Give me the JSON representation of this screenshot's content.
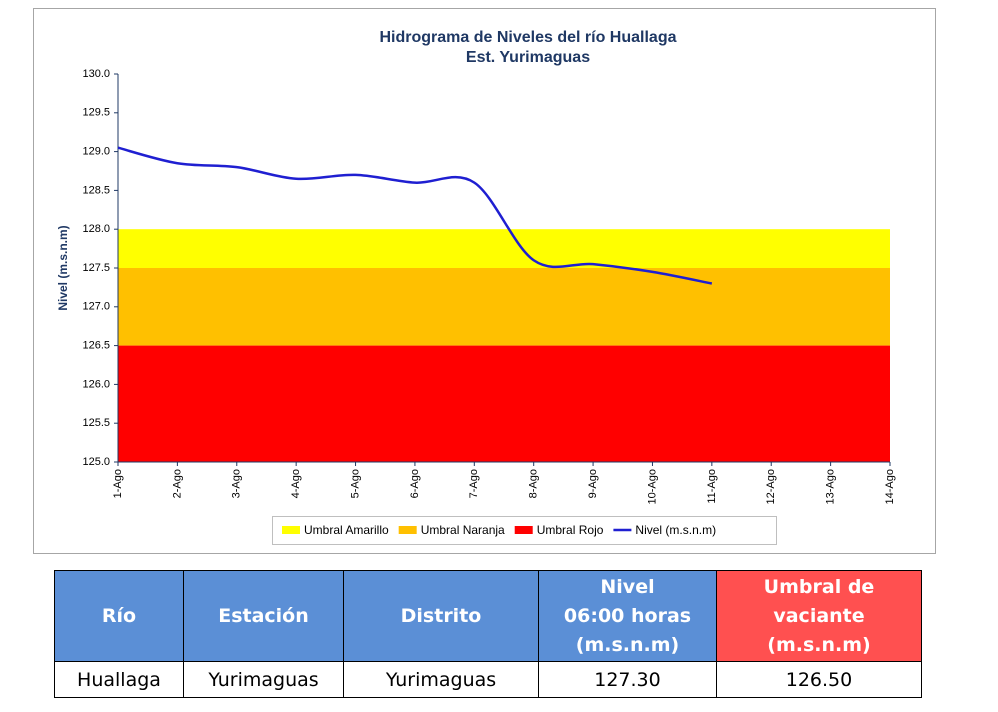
{
  "chart_data": {
    "type": "line",
    "title": "Hidrograma de Niveles del río Huallaga",
    "subtitle": "Est. Yurimaguas",
    "ylabel": "Nivel (m.s.n.m)",
    "categories": [
      "1-Ago",
      "2-Ago",
      "3-Ago",
      "4-Ago",
      "5-Ago",
      "6-Ago",
      "7-Ago",
      "8-Ago",
      "9-Ago",
      "10-Ago",
      "11-Ago",
      "12-Ago",
      "13-Ago",
      "14-Ago"
    ],
    "ylim": [
      125,
      130
    ],
    "yticks": [
      {
        "value": 125,
        "label": "125.0"
      },
      125.5,
      {
        "value": 126,
        "label": "126.0"
      },
      126.5,
      {
        "value": 127,
        "label": "127.0"
      },
      127.5,
      {
        "value": 128,
        "label": "128.0"
      },
      128.5,
      {
        "value": 129,
        "label": "129.0"
      },
      129.5,
      {
        "value": 130,
        "label": "130.0"
      }
    ],
    "bands": [
      {
        "name": "Umbral Amarillo",
        "color": "#ffff00",
        "range": [
          127.5,
          128
        ]
      },
      {
        "name": "Umbral Naranja",
        "color": "#ffc000",
        "range": [
          126.5,
          127.5
        ]
      },
      {
        "name": "Umbral Rojo",
        "color": "#ff0000",
        "range": [
          125,
          126.5
        ]
      }
    ],
    "series": [
      {
        "name": "Nivel (m.s.n.m)",
        "color": "#1f1fd1",
        "values": [
          129.05,
          128.85,
          128.8,
          128.65,
          128.7,
          128.6,
          128.6,
          127.6,
          127.55,
          127.45,
          127.3,
          null,
          null,
          null
        ]
      }
    ],
    "smooth": true
  },
  "table": {
    "header": [
      "Río",
      "Estación",
      "Distrito",
      "Nivel\n06:00 horas\n(m.s.n.m)",
      "Umbral de\nvaciante\n(m.s.n.m)"
    ],
    "rows": [
      [
        "Huallaga",
        "Yurimaguas",
        "Yurimaguas",
        "127.30",
        "126.50"
      ]
    ]
  }
}
